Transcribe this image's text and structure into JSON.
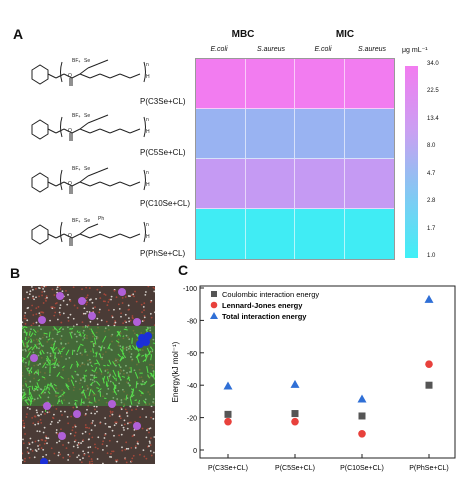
{
  "panels": {
    "a": "A",
    "b": "B",
    "c": "C"
  },
  "heatmap": {
    "group_titles": [
      "MBC",
      "MIC"
    ],
    "columns": [
      "E.coli",
      "S.aureus",
      "E.coli",
      "S.aureus"
    ],
    "unit": "μg mL⁻¹",
    "rows": [
      "P(C3Se+CL)",
      "P(C5Se+CL)",
      "P(C10Se+CL)",
      "P(PhSe+CL)"
    ],
    "row_colors": [
      "#f27cf0",
      "#99b3f2",
      "#c59af3",
      "#40ecf4"
    ],
    "colorbar_ticks": [
      "34.0",
      "22.5",
      "13.4",
      "8.0",
      "4.7",
      "2.8",
      "1.7",
      "1.0"
    ],
    "colorbar_top": "#f27cf0",
    "colorbar_bottom": "#3ff0f6"
  },
  "molecule_fragments": {
    "bf4": "BF₄",
    "se": "Se",
    "ph": "Ph",
    "o": "O",
    "h": "H",
    "repeat_x": "x",
    "repeat_n": "n"
  },
  "chart_data": {
    "type": "scatter",
    "title": "",
    "xlabel": "",
    "ylabel": "Energy(kJ mol⁻¹)",
    "categories": [
      "P(C3Se+CL)",
      "P(C5Se+CL)",
      "P(C10Se+CL)",
      "P(PhSe+CL)"
    ],
    "ylim": [
      0,
      -100
    ],
    "yticks": [
      "-100",
      "-80",
      "-60",
      "-40",
      "-20",
      "0"
    ],
    "legend_position": "top-left",
    "series": [
      {
        "name": "Coulombic interaction energy",
        "marker": "square",
        "color": "#555555",
        "values": [
          -22,
          -22.5,
          -21,
          -40
        ]
      },
      {
        "name": "Lennard-Jones energy",
        "marker": "circle",
        "color": "#e8413c",
        "values": [
          -17.5,
          -17.5,
          -10,
          -53
        ]
      },
      {
        "name": "Total interaction energy",
        "marker": "triangle",
        "color": "#2f6fd6",
        "values": [
          -39.5,
          -40.5,
          -31.5,
          -93
        ]
      }
    ]
  }
}
